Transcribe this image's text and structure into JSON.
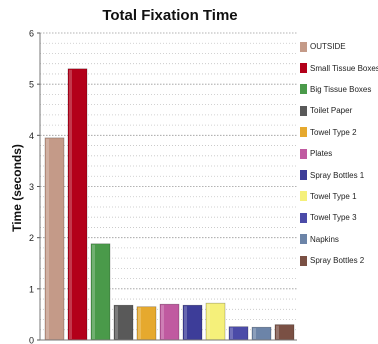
{
  "chart_data": {
    "type": "bar",
    "title": "Total Fixation Time",
    "xlabel": "",
    "ylabel": "Time (seconds)",
    "ylim": [
      0,
      6
    ],
    "yticks": [
      0,
      1,
      2,
      3,
      4,
      5,
      6
    ],
    "grid": true,
    "legend_position": "right",
    "categories": [
      "OUTSIDE",
      "Small Tissue Boxes",
      "Big Tissue Boxes",
      "Toilet Paper",
      "Towel Type 2",
      "Plates",
      "Spray Bottles 1",
      "Towel Type 1",
      "Towel Type 3",
      "Napkins",
      "Spray Bottles 2"
    ],
    "values": [
      3.95,
      5.3,
      1.88,
      0.68,
      0.65,
      0.7,
      0.68,
      0.72,
      0.26,
      0.25,
      0.3
    ],
    "colors": [
      "#c49a88",
      "#b3001a",
      "#4a9a4a",
      "#595959",
      "#e6a92e",
      "#c05aa0",
      "#3d3d99",
      "#f5f07a",
      "#4b4ba8",
      "#6c84a8",
      "#7a5044"
    ]
  }
}
